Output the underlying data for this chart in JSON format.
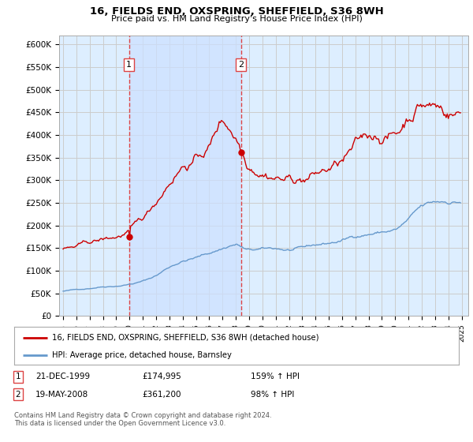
{
  "title": "16, FIELDS END, OXSPRING, SHEFFIELD, S36 8WH",
  "subtitle": "Price paid vs. HM Land Registry's House Price Index (HPI)",
  "background_color": "#ffffff",
  "plot_bg_color": "#ddeeff",
  "grid_color": "#cccccc",
  "ylim": [
    0,
    620000
  ],
  "yticks": [
    0,
    50000,
    100000,
    150000,
    200000,
    250000,
    300000,
    350000,
    400000,
    450000,
    500000,
    550000,
    600000
  ],
  "ytick_labels": [
    "£0",
    "£50K",
    "£100K",
    "£150K",
    "£200K",
    "£250K",
    "£300K",
    "£350K",
    "£400K",
    "£450K",
    "£500K",
    "£550K",
    "£600K"
  ],
  "hpi_color": "#6699cc",
  "price_color": "#cc0000",
  "shade_color": "#cce0ff",
  "sale1_date": 1999.96,
  "sale1_price": 174995,
  "sale2_date": 2008.38,
  "sale2_price": 361200,
  "vline_color": "#dd4444",
  "legend_label_price": "16, FIELDS END, OXSPRING, SHEFFIELD, S36 8WH (detached house)",
  "legend_label_hpi": "HPI: Average price, detached house, Barnsley",
  "footnote": "Contains HM Land Registry data © Crown copyright and database right 2024.\nThis data is licensed under the Open Government Licence v3.0.",
  "table_rows": [
    {
      "num": "1",
      "date": "21-DEC-1999",
      "price": "£174,995",
      "hpi": "159% ↑ HPI"
    },
    {
      "num": "2",
      "date": "19-MAY-2008",
      "price": "£361,200",
      "hpi": "98% ↑ HPI"
    }
  ]
}
